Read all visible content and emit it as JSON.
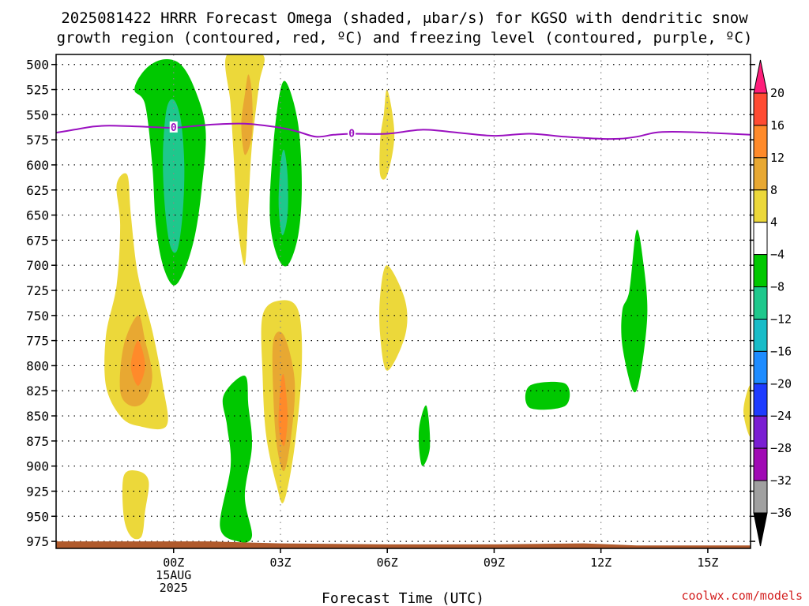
{
  "chart_data": {
    "type": "heatmap",
    "title_line1": "2025081422 HRRR Forecast Omega (shaded, μbar/s) for KGSO with dendritic snow",
    "title_line2": "growth region (contoured, red, ºC) and freezing level (contoured, purple, ºC)",
    "xlabel": "Forecast Time (UTC)",
    "credit": "coolwx.com/models",
    "x_unit": "hours relative to 2025-08-15 00Z",
    "xlim": [
      -3.3,
      16.2
    ],
    "x_ticks": [
      {
        "value": 0,
        "lines": [
          "00Z",
          "15AUG",
          "2025"
        ]
      },
      {
        "value": 3,
        "lines": [
          "03Z"
        ]
      },
      {
        "value": 6,
        "lines": [
          "06Z"
        ]
      },
      {
        "value": 9,
        "lines": [
          "09Z"
        ]
      },
      {
        "value": 12,
        "lines": [
          "12Z"
        ]
      },
      {
        "value": 15,
        "lines": [
          "15Z"
        ]
      }
    ],
    "ylabel": "",
    "ylim": [
      982,
      490
    ],
    "y_ticks": [
      500,
      525,
      550,
      575,
      600,
      625,
      650,
      675,
      700,
      725,
      750,
      775,
      800,
      825,
      850,
      875,
      900,
      925,
      950,
      975
    ],
    "grid": true,
    "colorbar": {
      "ticks": [
        "20",
        "16",
        "12",
        "8",
        "4",
        "−4",
        "−8",
        "−12",
        "−16",
        "−20",
        "−24",
        "−28",
        "−32",
        "−36"
      ],
      "colors": [
        "#ff1e7a",
        "#ff4b32",
        "#ff8a2a",
        "#e8a832",
        "#ecd83a",
        "#ffffff",
        "#00c800",
        "#1ec88c",
        "#18bcc8",
        "#1e8cff",
        "#1e3cff",
        "#7a1ed2",
        "#a00ab4",
        "#a0a0a0",
        "#000000"
      ]
    },
    "freezing_level": {
      "color": "#9a10c0",
      "label": "0",
      "points": [
        [
          -3.3,
          568
        ],
        [
          -2.8,
          565
        ],
        [
          -2.3,
          562
        ],
        [
          -1.8,
          561
        ],
        [
          -0.8,
          562
        ],
        [
          0,
          563
        ],
        [
          1,
          560
        ],
        [
          2,
          559
        ],
        [
          3,
          563
        ],
        [
          3.5,
          567
        ],
        [
          4,
          572
        ],
        [
          4.5,
          570
        ],
        [
          5,
          569
        ],
        [
          6,
          569
        ],
        [
          7,
          565
        ],
        [
          8,
          568
        ],
        [
          9,
          571
        ],
        [
          10,
          569
        ],
        [
          11,
          572
        ],
        [
          12,
          574
        ],
        [
          12.5,
          574
        ],
        [
          13,
          572
        ],
        [
          13.5,
          568
        ],
        [
          14,
          567
        ],
        [
          15,
          568
        ],
        [
          16.2,
          570
        ]
      ],
      "label_at": [
        [
          0,
          563
        ],
        [
          5,
          569
        ]
      ]
    },
    "omega_regions": [
      {
        "level": "-4",
        "color": "#00c800",
        "points": [
          [
            -1.1,
            525
          ],
          [
            -0.8,
            505
          ],
          [
            -0.3,
            495
          ],
          [
            0.2,
            500
          ],
          [
            0.6,
            525
          ],
          [
            0.9,
            565
          ],
          [
            0.8,
            620
          ],
          [
            0.6,
            670
          ],
          [
            0.3,
            705
          ],
          [
            0,
            720
          ],
          [
            -0.3,
            700
          ],
          [
            -0.5,
            660
          ],
          [
            -0.6,
            600
          ],
          [
            -0.8,
            540
          ]
        ]
      },
      {
        "level": "-12",
        "color": "#1ec88c",
        "points": [
          [
            -0.2,
            545
          ],
          [
            0,
            535
          ],
          [
            0.2,
            555
          ],
          [
            0.3,
            600
          ],
          [
            0.25,
            650
          ],
          [
            0.1,
            685
          ],
          [
            -0.1,
            680
          ],
          [
            -0.25,
            640
          ],
          [
            -0.3,
            590
          ]
        ]
      },
      {
        "level": "4",
        "color": "#ecd83a",
        "points": [
          [
            1.5,
            490
          ],
          [
            2.5,
            490
          ],
          [
            2.4,
            520
          ],
          [
            2.2,
            580
          ],
          [
            2.1,
            640
          ],
          [
            2,
            700
          ],
          [
            1.8,
            660
          ],
          [
            1.7,
            600
          ],
          [
            1.6,
            540
          ]
        ]
      },
      {
        "level": "8",
        "color": "#e8a832",
        "points": [
          [
            2.0,
            530
          ],
          [
            2.1,
            510
          ],
          [
            2.2,
            530
          ],
          [
            2.2,
            570
          ],
          [
            2.0,
            590
          ],
          [
            1.9,
            560
          ]
        ]
      },
      {
        "level": "-4",
        "color": "#00c800",
        "points": [
          [
            3.0,
            525
          ],
          [
            3.2,
            520
          ],
          [
            3.5,
            560
          ],
          [
            3.6,
            620
          ],
          [
            3.5,
            670
          ],
          [
            3.2,
            700
          ],
          [
            2.9,
            690
          ],
          [
            2.7,
            650
          ],
          [
            2.8,
            580
          ]
        ]
      },
      {
        "level": "-12",
        "color": "#1ec88c",
        "points": [
          [
            3.0,
            600
          ],
          [
            3.1,
            585
          ],
          [
            3.2,
            610
          ],
          [
            3.2,
            650
          ],
          [
            3.05,
            670
          ],
          [
            2.95,
            640
          ]
        ]
      },
      {
        "level": "4",
        "color": "#ecd83a",
        "points": [
          [
            5.9,
            550
          ],
          [
            6.0,
            525
          ],
          [
            6.2,
            570
          ],
          [
            6.0,
            610
          ],
          [
            5.8,
            610
          ],
          [
            5.8,
            575
          ]
        ]
      },
      {
        "level": "4",
        "color": "#ecd83a",
        "points": [
          [
            -1.6,
            620
          ],
          [
            -1.3,
            610
          ],
          [
            -1.2,
            650
          ],
          [
            -1.0,
            710
          ],
          [
            -0.6,
            765
          ],
          [
            -0.3,
            820
          ],
          [
            -0.2,
            860
          ],
          [
            -1.0,
            860
          ],
          [
            -1.5,
            850
          ],
          [
            -1.9,
            820
          ],
          [
            -1.9,
            770
          ],
          [
            -1.6,
            720
          ],
          [
            -1.5,
            660
          ]
        ]
      },
      {
        "level": "8",
        "color": "#e8a832",
        "points": [
          [
            -1.0,
            750
          ],
          [
            -0.8,
            775
          ],
          [
            -0.6,
            810
          ],
          [
            -0.8,
            835
          ],
          [
            -1.2,
            840
          ],
          [
            -1.5,
            825
          ],
          [
            -1.4,
            780
          ]
        ]
      },
      {
        "level": "12",
        "color": "#ff8a2a",
        "points": [
          [
            -1.0,
            775
          ],
          [
            -0.8,
            800
          ],
          [
            -1.0,
            820
          ],
          [
            -1.2,
            800
          ]
        ]
      },
      {
        "level": "4",
        "color": "#ecd83a",
        "points": [
          [
            -1.4,
            910
          ],
          [
            -1.0,
            905
          ],
          [
            -0.7,
            915
          ],
          [
            -0.8,
            945
          ],
          [
            -0.9,
            970
          ],
          [
            -1.2,
            970
          ],
          [
            -1.4,
            950
          ]
        ]
      },
      {
        "level": "-4",
        "color": "#00c800",
        "points": [
          [
            1.4,
            830
          ],
          [
            2.0,
            810
          ],
          [
            2.1,
            840
          ],
          [
            2.2,
            880
          ],
          [
            2.0,
            930
          ],
          [
            2.2,
            970
          ],
          [
            1.8,
            975
          ],
          [
            1.3,
            960
          ],
          [
            1.6,
            900
          ],
          [
            1.5,
            860
          ]
        ]
      },
      {
        "level": "4",
        "color": "#ecd83a",
        "points": [
          [
            2.5,
            750
          ],
          [
            3.0,
            735
          ],
          [
            3.5,
            745
          ],
          [
            3.6,
            800
          ],
          [
            3.4,
            880
          ],
          [
            3.1,
            935
          ],
          [
            2.9,
            920
          ],
          [
            2.6,
            870
          ],
          [
            2.5,
            810
          ]
        ]
      },
      {
        "level": "8",
        "color": "#e8a832",
        "points": [
          [
            2.8,
            775
          ],
          [
            3.1,
            770
          ],
          [
            3.4,
            815
          ],
          [
            3.3,
            870
          ],
          [
            3.1,
            905
          ],
          [
            2.9,
            880
          ],
          [
            2.8,
            830
          ]
        ]
      },
      {
        "level": "12",
        "color": "#ff8a2a",
        "points": [
          [
            3.0,
            820
          ],
          [
            3.1,
            810
          ],
          [
            3.2,
            850
          ],
          [
            3.1,
            880
          ],
          [
            2.95,
            860
          ]
        ]
      },
      {
        "level": "4",
        "color": "#ecd83a",
        "points": [
          [
            5.8,
            730
          ],
          [
            6.0,
            700
          ],
          [
            6.5,
            735
          ],
          [
            6.5,
            770
          ],
          [
            6.0,
            805
          ],
          [
            5.8,
            770
          ]
        ]
      },
      {
        "level": "-4",
        "color": "#00c800",
        "points": [
          [
            6.9,
            860
          ],
          [
            7.1,
            840
          ],
          [
            7.2,
            880
          ],
          [
            7.0,
            900
          ],
          [
            6.9,
            885
          ]
        ]
      },
      {
        "level": "-4",
        "color": "#00c800",
        "points": [
          [
            10.0,
            820
          ],
          [
            11.0,
            818
          ],
          [
            11.0,
            840
          ],
          [
            10.0,
            842
          ]
        ]
      },
      {
        "level": "-4",
        "color": "#00c800",
        "points": [
          [
            12.8,
            725
          ],
          [
            13.0,
            665
          ],
          [
            13.2,
            700
          ],
          [
            13.3,
            750
          ],
          [
            13.1,
            810
          ],
          [
            12.9,
            825
          ],
          [
            12.6,
            780
          ],
          [
            12.6,
            745
          ]
        ]
      },
      {
        "level": "4",
        "color": "#ecd83a",
        "points": [
          [
            16.2,
            820
          ],
          [
            16.0,
            845
          ],
          [
            16.2,
            870
          ]
        ]
      }
    ],
    "terrain": {
      "color": "#b05a2c",
      "points": [
        [
          -3.3,
          975
        ],
        [
          1.0,
          975
        ],
        [
          3.0,
          977
        ],
        [
          6.0,
          978
        ],
        [
          9.0,
          978
        ],
        [
          11.5,
          977
        ],
        [
          13.0,
          979
        ],
        [
          16.2,
          979
        ]
      ]
    }
  }
}
